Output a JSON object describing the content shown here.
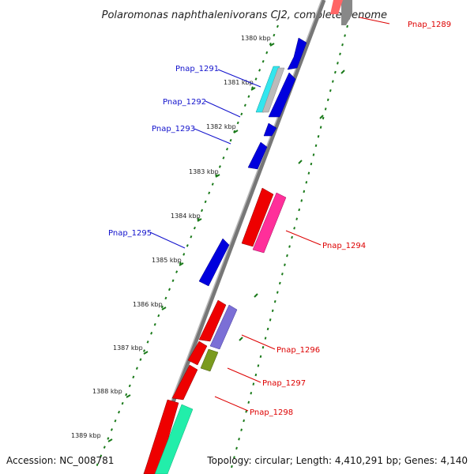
{
  "title": "Polaromonas naphthalenivorans CJ2, complete genome",
  "accession": "Accession: NC_008781",
  "topology": "Topology: circular; Length: 4,410,291 bp; Genes: 4,140",
  "kbp_labels": [
    "1380 kbp",
    "1381 kbp",
    "1382 kbp",
    "1383 kbp",
    "1384 kbp",
    "1385 kbp",
    "1386 kbp",
    "1387 kbp",
    "1388 kbp",
    "1389 kbp"
  ],
  "gene_labels": {
    "pnap_1289": "Pnap_1289",
    "pnap_1291": "Pnap_1291",
    "pnap_1292": "Pnap_1292",
    "pnap_1293": "Pnap_1293",
    "pnap_1294": "Pnap_1294",
    "pnap_1295": "Pnap_1295",
    "pnap_1296": "Pnap_1296",
    "pnap_1297": "Pnap_1297",
    "pnap_1298": "Pnap_1298"
  },
  "colors": {
    "backbone": "#888888",
    "ticks": "#1a7a1a",
    "blue": "#0000dd",
    "red": "#ee0000",
    "cyan": "#33e6ee",
    "grey": "#bbbbbb",
    "pink": "#ff2f9a",
    "purple": "#7b6fd6",
    "olive": "#7a9a1e",
    "teal": "#22eeaa",
    "label_blue": "#1111cc",
    "label_red": "#dd0000"
  }
}
